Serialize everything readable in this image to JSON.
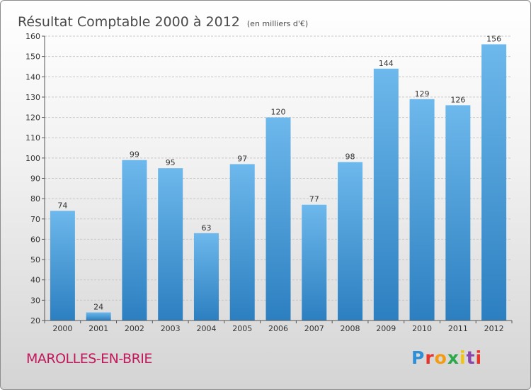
{
  "title": "Résultat Comptable 2000 à 2012",
  "subtitle": "(en milliers d'€)",
  "commune": "MAROLLES-EN-BRIE",
  "logo": {
    "letters": [
      "P",
      "r",
      "o",
      "x",
      "i",
      "t",
      "i"
    ],
    "colors": [
      "#2e8fd8",
      "#e8332a",
      "#f39c12",
      "#2aa84a",
      "#f1c40f",
      "#8e44ad",
      "#e8332a"
    ]
  },
  "colors": {
    "bar_light": "#6db8ec",
    "bar_dark": "#2c7fc0",
    "grid": "#c8c8c8",
    "axis": "#555555"
  },
  "chart_data": {
    "type": "bar",
    "title": "Résultat Comptable 2000 à 2012",
    "subtitle": "(en milliers d'€)",
    "categories": [
      "2000",
      "2001",
      "2002",
      "2003",
      "2004",
      "2005",
      "2006",
      "2007",
      "2008",
      "2009",
      "2010",
      "2011",
      "2012"
    ],
    "values": [
      74,
      24,
      99,
      95,
      63,
      97,
      120,
      77,
      98,
      144,
      129,
      126,
      156
    ],
    "ylim": [
      20,
      160
    ],
    "yticks": [
      20,
      30,
      40,
      50,
      60,
      70,
      80,
      90,
      100,
      110,
      120,
      130,
      140,
      150,
      160
    ],
    "grid": true
  }
}
